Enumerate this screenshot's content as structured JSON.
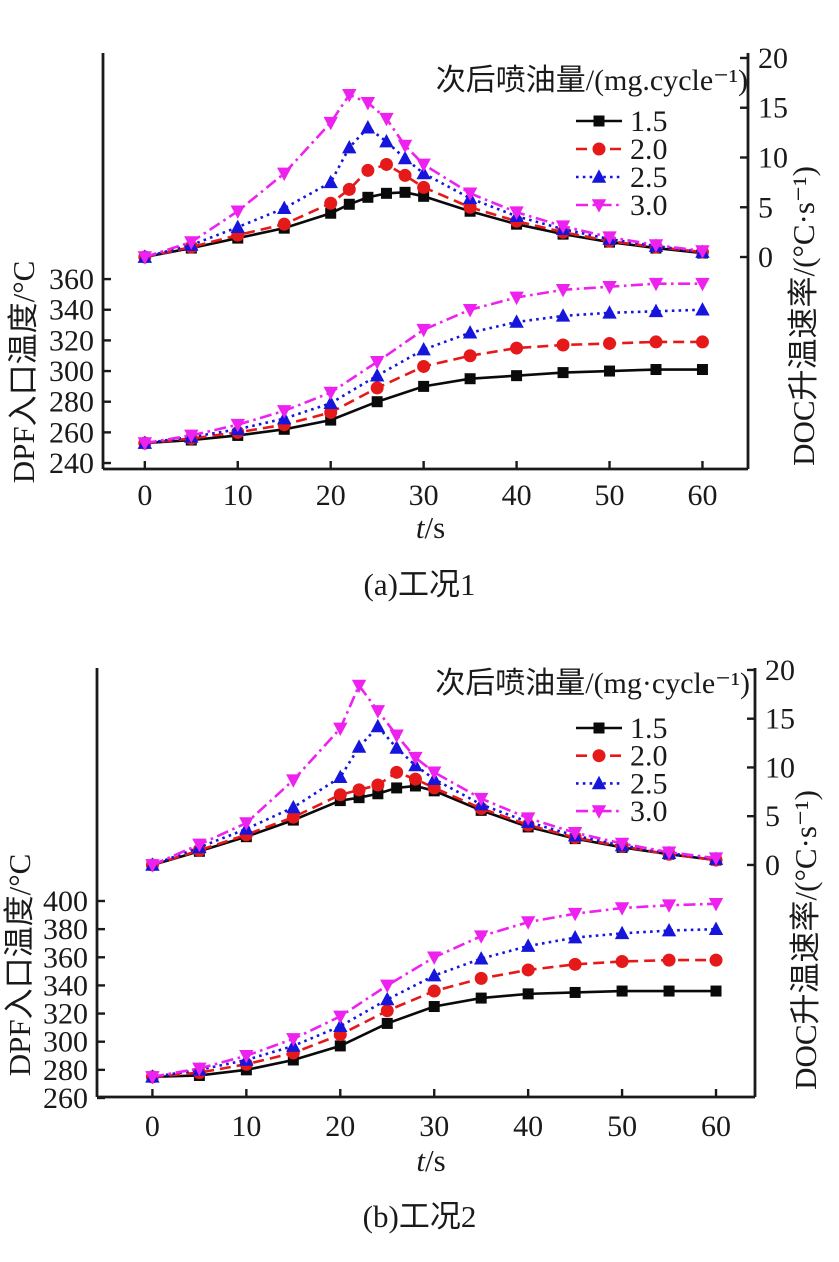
{
  "chart_data": [
    {
      "id": "a",
      "type": "line",
      "caption": "(a)工况1",
      "legend": {
        "title": "次后喷油量/(mg.cycle⁻¹)",
        "position": "top-right",
        "items": [
          "1.5",
          "2.0",
          "2.5",
          "3.0"
        ]
      },
      "series_styles": [
        {
          "label": "1.5",
          "color": "#0a0a0a",
          "marker": "square",
          "line": "solid"
        },
        {
          "label": "2.0",
          "color": "#e51919",
          "marker": "circle",
          "line": "dashed"
        },
        {
          "label": "2.5",
          "color": "#1515dc",
          "marker": "triangle-up",
          "line": "dotted"
        },
        {
          "label": "3.0",
          "color": "#ee22ee",
          "marker": "triangle-down",
          "line": "dashdot"
        }
      ],
      "axes": {
        "x": {
          "label": "t/s",
          "ticks": [
            0,
            10,
            20,
            30,
            40,
            50,
            60
          ],
          "range": [
            -4.5,
            64.9
          ],
          "grid": false
        },
        "y_left": {
          "label": "DPF入口温度/°C",
          "ticks": [
            240,
            260,
            280,
            300,
            320,
            340,
            360
          ],
          "range": [
            236.1,
            507.5
          ]
        },
        "y_right": {
          "label": "DOC升温速率/(°C·s⁻¹)",
          "ticks": [
            0,
            5,
            10,
            15,
            20
          ],
          "range": [
            -21.3,
            20.5
          ]
        }
      },
      "temperature_vs_time": {
        "unit": "°C",
        "axis": "y_left",
        "x": [
          0,
          5,
          10,
          15,
          20,
          25,
          30,
          35,
          40,
          45,
          50,
          55,
          60
        ],
        "series": [
          {
            "label": "1.5",
            "values": [
              253,
              255,
              258,
              262,
              268,
              280,
              290,
              295,
              297,
              299,
              300,
              301,
              301
            ]
          },
          {
            "label": "2.0",
            "values": [
              253,
              256,
              260,
              265,
              273,
              289,
              303,
              310,
              315,
              317,
              318,
              319,
              319
            ]
          },
          {
            "label": "2.5",
            "values": [
              253,
              257,
              262,
              269,
              279,
              297,
              314,
              325,
              332,
              336,
              338,
              339,
              340
            ]
          },
          {
            "label": "3.0",
            "values": [
              253,
              258,
              265,
              274,
              286,
              306,
              327,
              340,
              348,
              353,
              355,
              357,
              357
            ]
          }
        ]
      },
      "heating_rate_vs_time": {
        "unit": "°C/s",
        "axis": "y_right",
        "x": [
          0,
          5,
          10,
          15,
          20,
          22,
          24,
          26,
          28,
          30,
          35,
          40,
          45,
          50,
          55,
          60
        ],
        "series": [
          {
            "label": "1.5",
            "values": [
              0,
              0.9,
              1.9,
              2.9,
              4.4,
              5.3,
              6.0,
              6.4,
              6.5,
              6.1,
              4.6,
              3.3,
              2.3,
              1.5,
              0.9,
              0.4
            ]
          },
          {
            "label": "2.0",
            "values": [
              0,
              1.0,
              2.2,
              3.3,
              5.4,
              6.8,
              8.7,
              9.3,
              8.2,
              7.0,
              5.0,
              3.6,
              2.5,
              1.6,
              1.0,
              0.5
            ]
          },
          {
            "label": "2.5",
            "values": [
              0,
              1.2,
              3.0,
              4.9,
              7.5,
              11.0,
              13.0,
              11.6,
              9.9,
              8.4,
              5.9,
              4.1,
              2.8,
              1.8,
              1.1,
              0.5
            ]
          },
          {
            "label": "3.0",
            "values": [
              0,
              1.5,
              4.6,
              8.4,
              13.5,
              16.3,
              15.5,
              13.9,
              11.2,
              9.3,
              6.4,
              4.5,
              3.1,
              2.0,
              1.2,
              0.6
            ]
          }
        ]
      }
    },
    {
      "id": "b",
      "type": "line",
      "caption": "(b)工况2",
      "legend": {
        "title": "次后喷油量/(mg·cycle⁻¹)",
        "position": "top-right",
        "items": [
          "1.5",
          "2.0",
          "2.5",
          "3.0"
        ]
      },
      "series_styles": [
        {
          "label": "1.5",
          "color": "#0a0a0a",
          "marker": "square",
          "line": "solid"
        },
        {
          "label": "2.0",
          "color": "#e51919",
          "marker": "circle",
          "line": "dashed"
        },
        {
          "label": "2.5",
          "color": "#1515dc",
          "marker": "triangle-up",
          "line": "dotted"
        },
        {
          "label": "3.0",
          "color": "#ee22ee",
          "marker": "triangle-down",
          "line": "dashdot"
        }
      ],
      "axes": {
        "x": {
          "label": "t/s",
          "ticks": [
            0,
            10,
            20,
            30,
            40,
            50,
            60
          ],
          "range": [
            -5.9,
            64.15
          ],
          "grid": false
        },
        "y_left": {
          "label": "DPF入口温度/°C",
          "ticks": [
            260,
            280,
            300,
            320,
            340,
            360,
            380,
            400
          ],
          "range": [
            260.7,
            565.6
          ]
        },
        "y_right": {
          "label": "DOC升温速率/(°C·s⁻¹)",
          "ticks": [
            0,
            5,
            10,
            15,
            20
          ],
          "range": [
            -23.8,
            20.2
          ]
        }
      },
      "temperature_vs_time": {
        "unit": "°C",
        "axis": "y_left",
        "x": [
          0,
          5,
          10,
          15,
          20,
          25,
          30,
          35,
          40,
          45,
          50,
          55,
          60
        ],
        "series": [
          {
            "label": "1.5",
            "values": [
              275,
              276,
              280,
              287,
              297,
              313,
              325,
              331,
              334,
              335,
              336,
              336,
              336
            ]
          },
          {
            "label": "2.0",
            "values": [
              275,
              278,
              284,
              292,
              305,
              322,
              336,
              345,
              351,
              355,
              357,
              358,
              358
            ]
          },
          {
            "label": "2.5",
            "values": [
              275,
              280,
              287,
              297,
              311,
              330,
              347,
              359,
              368,
              374,
              377,
              379,
              380
            ]
          },
          {
            "label": "3.0",
            "values": [
              275,
              281,
              290,
              302,
              318,
              340,
              360,
              375,
              385,
              391,
              395,
              397,
              398
            ]
          }
        ]
      },
      "heating_rate_vs_time": {
        "unit": "°C/s",
        "axis": "y_right",
        "x": [
          0,
          5,
          10,
          15,
          20,
          22,
          24,
          26,
          28,
          30,
          35,
          40,
          45,
          50,
          55,
          60
        ],
        "series": [
          {
            "label": "1.5",
            "values": [
              0,
              1.4,
              2.9,
              4.6,
              6.6,
              6.9,
              7.3,
              7.9,
              8.1,
              7.6,
              5.6,
              3.9,
              2.7,
              1.8,
              1.1,
              0.5
            ]
          },
          {
            "label": "2.0",
            "values": [
              0,
              1.5,
              3.1,
              4.9,
              7.2,
              7.7,
              8.2,
              9.5,
              8.8,
              7.9,
              5.8,
              4.1,
              2.8,
              1.9,
              1.1,
              0.5
            ]
          },
          {
            "label": "2.5",
            "values": [
              0,
              1.8,
              3.7,
              5.9,
              9.0,
              12.1,
              14.2,
              12.0,
              10.2,
              8.8,
              6.2,
              4.4,
              3.0,
              2.0,
              1.2,
              0.6
            ]
          },
          {
            "label": "3.0",
            "values": [
              0,
              2.1,
              4.3,
              8.7,
              14.0,
              18.4,
              15.8,
              13.3,
              11.0,
              9.5,
              6.8,
              4.8,
              3.3,
              2.2,
              1.3,
              0.7
            ]
          }
        ]
      }
    }
  ]
}
